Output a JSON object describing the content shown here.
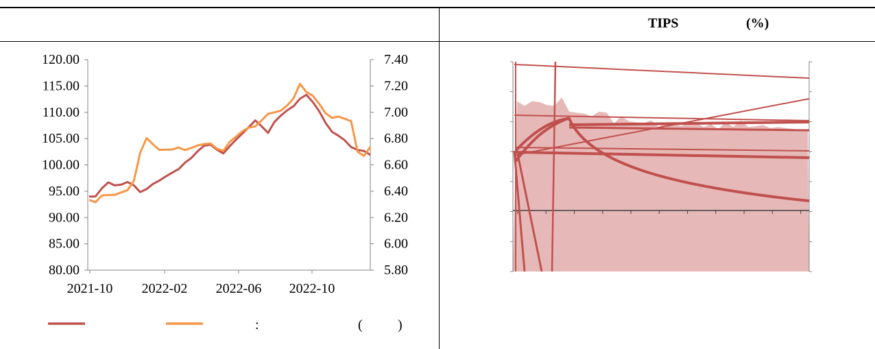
{
  "left_panel": {
    "legend": {
      "colon": ":",
      "paren_open": "(",
      "paren_close": ")"
    },
    "chart_data": {
      "type": "line",
      "x_ticks": [
        "2021-10",
        "2022-02",
        "2022-06",
        "2022-10"
      ],
      "y_left": {
        "ticks": [
          "120.00",
          "115.00",
          "110.00",
          "105.00",
          "100.00",
          "95.00",
          "90.00",
          "85.00",
          "80.00"
        ],
        "range": [
          80,
          120
        ]
      },
      "y_right": {
        "ticks": [
          "7.40",
          "7.20",
          "7.00",
          "6.80",
          "6.60",
          "6.40",
          "6.20",
          "6.00",
          "5.80"
        ],
        "range": [
          5.8,
          7.4
        ]
      },
      "series": [
        {
          "axis": "left",
          "color": "#c0504d",
          "values": [
            94,
            94.2,
            95.5,
            96.5,
            96.2,
            96.4,
            96.6,
            96.0,
            95.0,
            95.5,
            96.2,
            97.0,
            98.0,
            98.5,
            99.0,
            100.5,
            101.5,
            102.5,
            103.5,
            104.0,
            103.0,
            102.0,
            103.5,
            105.0,
            106.0,
            107.0,
            108.5,
            107.5,
            106.0,
            108.0,
            109.5,
            110.5,
            111.0,
            112.5,
            113.5,
            112.0,
            110.0,
            108.0,
            106.5,
            105.5,
            104.5,
            103.5,
            103.0,
            102.5,
            101.8
          ]
        },
        {
          "axis": "right",
          "color": "#f79646",
          "values": [
            6.34,
            6.32,
            6.36,
            6.37,
            6.38,
            6.39,
            6.4,
            6.48,
            6.7,
            6.8,
            6.75,
            6.72,
            6.72,
            6.71,
            6.73,
            6.72,
            6.73,
            6.74,
            6.76,
            6.77,
            6.72,
            6.7,
            6.78,
            6.82,
            6.85,
            6.88,
            6.9,
            6.94,
            6.98,
            7.0,
            7.02,
            7.05,
            7.1,
            7.22,
            7.16,
            7.12,
            7.06,
            7.0,
            6.96,
            6.96,
            6.95,
            6.94,
            6.7,
            6.66,
            6.74
          ]
        }
      ]
    }
  },
  "right_panel": {
    "title": "TIPS",
    "title_unit": "(%)",
    "chart_data": {
      "type": "area",
      "area_values": [
        4.4,
        4.35,
        4.4,
        4.45,
        4.3,
        4.35,
        4.5,
        4.2,
        4.1,
        4.15,
        4.0,
        4.2,
        4.1,
        3.9,
        4.0,
        3.95,
        3.85,
        3.9,
        3.9,
        3.8,
        3.85,
        3.9,
        3.75,
        3.9,
        3.85,
        3.8,
        3.8,
        3.75,
        3.85,
        3.8,
        3.9,
        3.8,
        3.75,
        3.85,
        3.7,
        3.8,
        3.7,
        3.75,
        3.65,
        3.7
      ],
      "area_color": "#e6b9b8",
      "line_color": "#c0504d"
    }
  }
}
